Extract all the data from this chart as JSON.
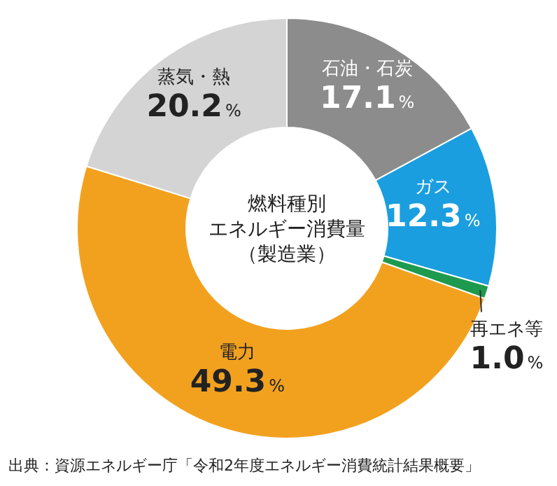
{
  "chart_data": {
    "type": "donut",
    "title": "燃料種別エネルギー消費量",
    "subtitle": "（製造業）",
    "value_labels": [
      "17.1%",
      "12.3%",
      "1.0%",
      "49.3%",
      "20.2%"
    ],
    "categories": [
      "石油・石炭",
      "ガス",
      "再エネ等",
      "電力",
      "蒸気・熱"
    ],
    "values": [
      17.1,
      12.3,
      1.0,
      49.3,
      20.2
    ],
    "colors": [
      "#8c8c8c",
      "#1a9ee0",
      "#1e9a4e",
      "#f2a11f",
      "#d4d4d4"
    ],
    "annotations": [
      "出典：資源エネルギー庁「令和2年度エネルギー消費統計結果概要」"
    ]
  }
}
